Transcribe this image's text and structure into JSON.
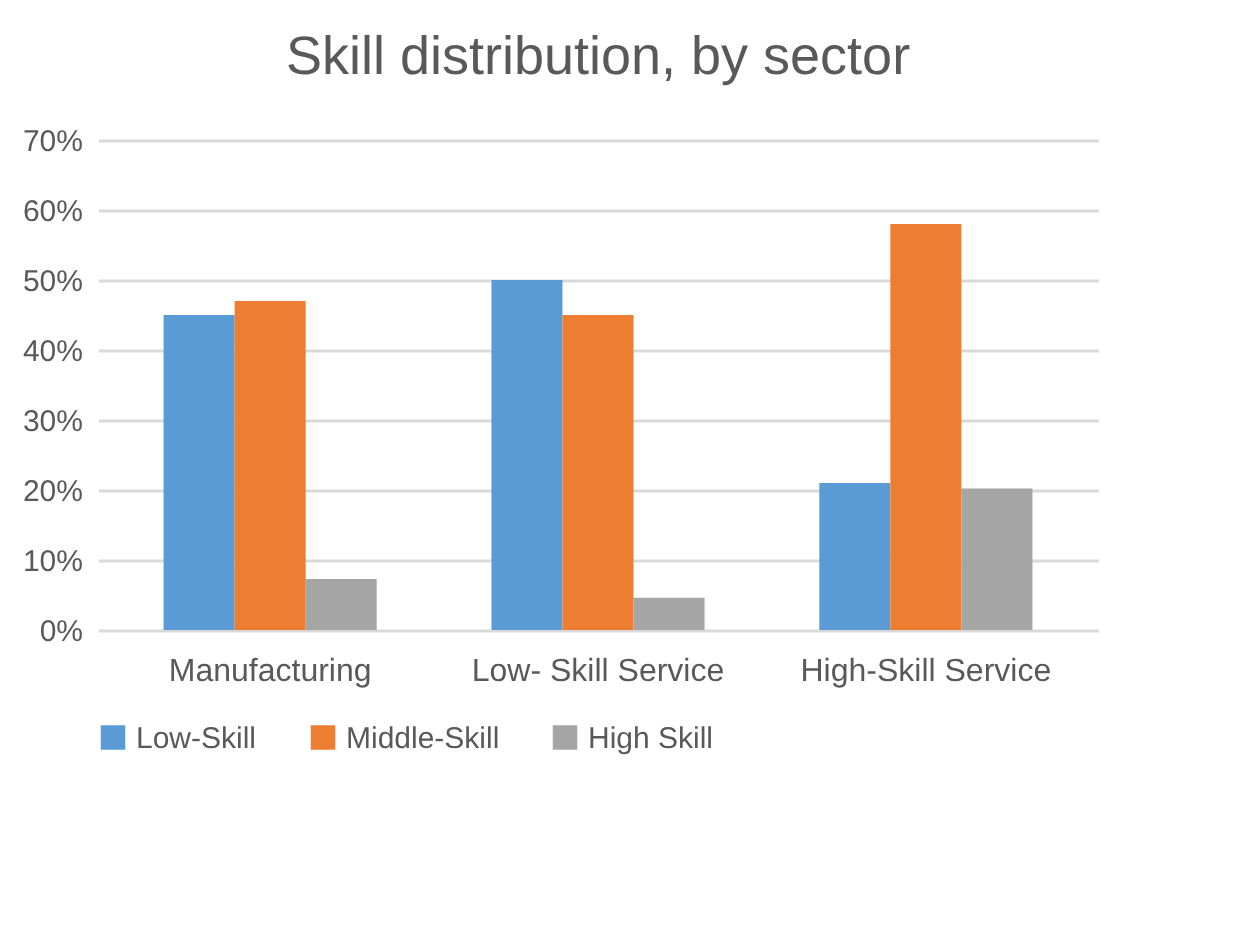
{
  "chart_data": {
    "type": "bar",
    "title": "Skill distribution, by sector",
    "categories": [
      "Manufacturing",
      "Low- Skill Service",
      "High-Skill Service"
    ],
    "series": [
      {
        "name": "Low-Skill",
        "color": "#5b9bd5",
        "values": [
          45,
          50,
          21
        ]
      },
      {
        "name": "Middle-Skill",
        "color": "#ed7d31",
        "values": [
          47,
          45,
          58
        ]
      },
      {
        "name": "High Skill",
        "color": "#a5a5a5",
        "values": [
          7.3,
          4.6,
          20.2
        ]
      }
    ],
    "ylim": [
      0,
      70
    ],
    "yticks": [
      {
        "value": 0,
        "label": "0%"
      },
      {
        "value": 10,
        "label": "10%"
      },
      {
        "value": 20,
        "label": "20%"
      },
      {
        "value": 30,
        "label": "30%"
      },
      {
        "value": 40,
        "label": "40%"
      },
      {
        "value": 50,
        "label": "50%"
      },
      {
        "value": 60,
        "label": "60%"
      },
      {
        "value": 70,
        "label": "70%"
      }
    ],
    "grid": "y",
    "legend": "bottom"
  }
}
